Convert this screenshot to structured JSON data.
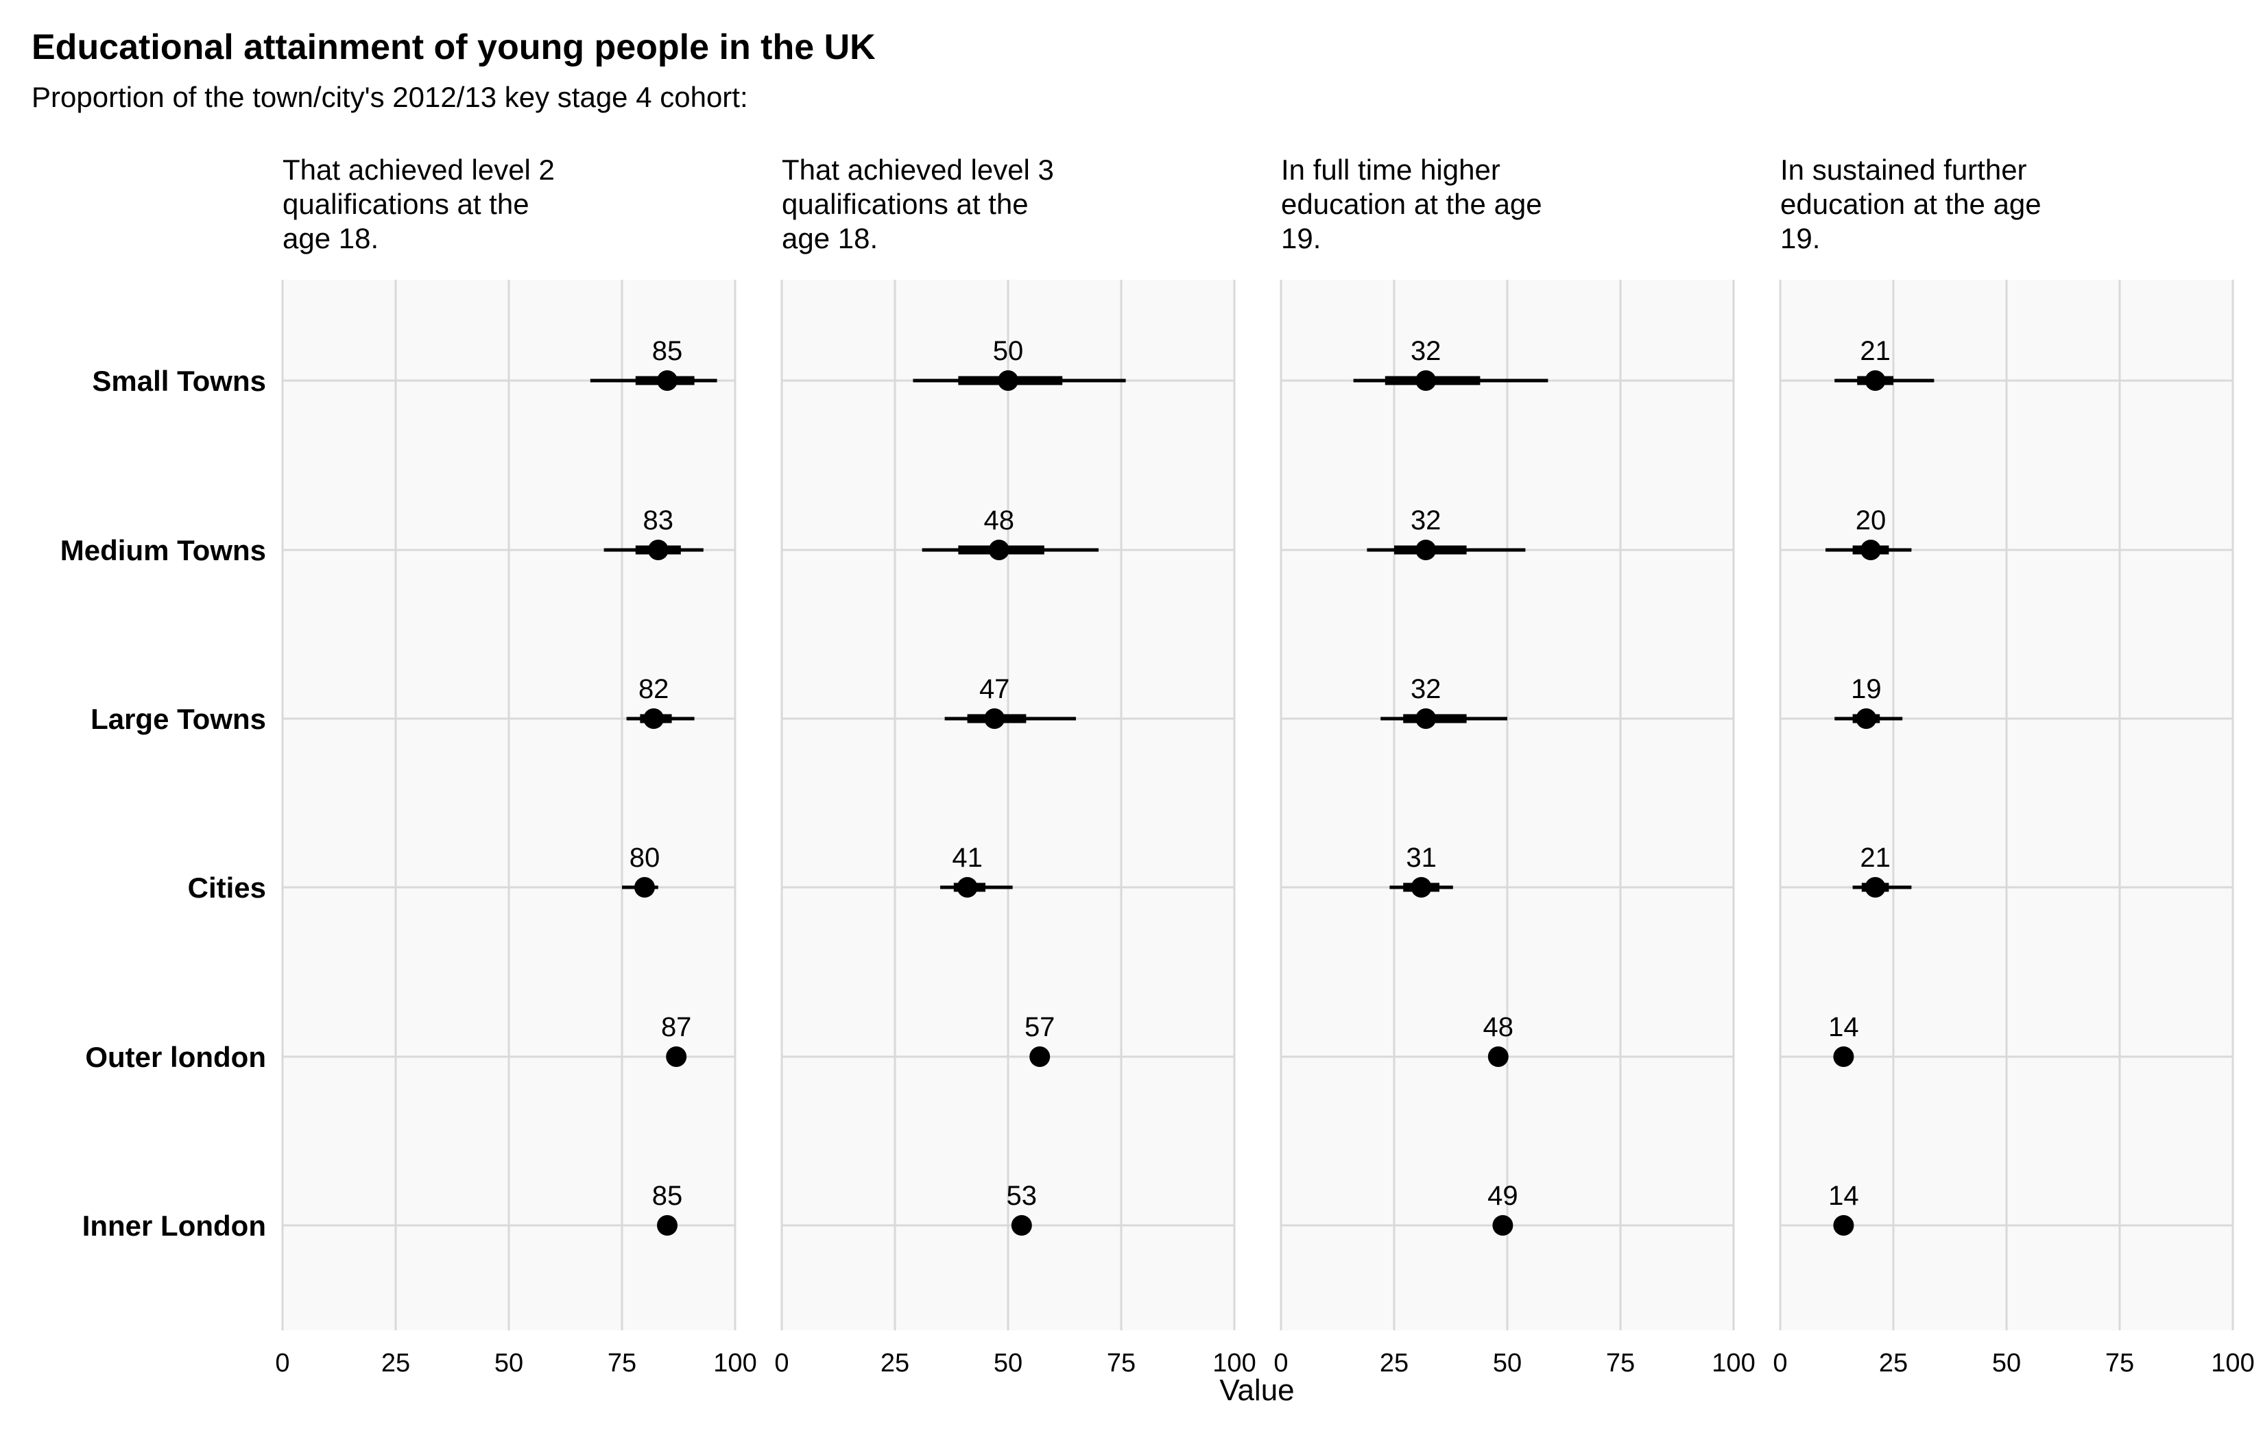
{
  "chart_data": {
    "type": "scatter",
    "title": "Educational attainment of young people in the UK",
    "subtitle": "Proportion of the town/city's 2012/13 key stage 4 cohort:",
    "xlabel": "Value",
    "ylabel": "",
    "xlim": [
      0,
      100
    ],
    "xticks": [
      "0",
      "25",
      "50",
      "75",
      "100"
    ],
    "grid": true,
    "categories": [
      "Small Towns",
      "Medium Towns",
      "Large Towns",
      "Cities",
      "Outer london",
      "Inner London"
    ],
    "facets": [
      {
        "title_lines": [
          "That achieved level 2",
          "qualifications at the",
          "age 18."
        ],
        "points": [
          {
            "category": "Small Towns",
            "value": 85,
            "label": "85",
            "range_inner": [
              78,
              91
            ],
            "range_outer": [
              68,
              96
            ]
          },
          {
            "category": "Medium Towns",
            "value": 83,
            "label": "83",
            "range_inner": [
              78,
              88
            ],
            "range_outer": [
              71,
              93
            ]
          },
          {
            "category": "Large Towns",
            "value": 82,
            "label": "82",
            "range_inner": [
              79,
              86
            ],
            "range_outer": [
              76,
              91
            ]
          },
          {
            "category": "Cities",
            "value": 80,
            "label": "80",
            "range_inner": [
              78,
              82
            ],
            "range_outer": [
              75,
              83
            ]
          },
          {
            "category": "Outer london",
            "value": 87,
            "label": "87"
          },
          {
            "category": "Inner London",
            "value": 85,
            "label": "85"
          }
        ]
      },
      {
        "title_lines": [
          "That achieved level 3",
          "qualifications at the",
          "age 18."
        ],
        "points": [
          {
            "category": "Small Towns",
            "value": 50,
            "label": "50",
            "range_inner": [
              39,
              62
            ],
            "range_outer": [
              29,
              76
            ]
          },
          {
            "category": "Medium Towns",
            "value": 48,
            "label": "48",
            "range_inner": [
              39,
              58
            ],
            "range_outer": [
              31,
              70
            ]
          },
          {
            "category": "Large Towns",
            "value": 47,
            "label": "47",
            "range_inner": [
              41,
              54
            ],
            "range_outer": [
              36,
              65
            ]
          },
          {
            "category": "Cities",
            "value": 41,
            "label": "41",
            "range_inner": [
              38,
              45
            ],
            "range_outer": [
              35,
              51
            ]
          },
          {
            "category": "Outer london",
            "value": 57,
            "label": "57"
          },
          {
            "category": "Inner London",
            "value": 53,
            "label": "53"
          }
        ]
      },
      {
        "title_lines": [
          "In full time higher",
          "education at the age",
          "19."
        ],
        "points": [
          {
            "category": "Small Towns",
            "value": 32,
            "label": "32",
            "range_inner": [
              23,
              44
            ],
            "range_outer": [
              16,
              59
            ]
          },
          {
            "category": "Medium Towns",
            "value": 32,
            "label": "32",
            "range_inner": [
              25,
              41
            ],
            "range_outer": [
              19,
              54
            ]
          },
          {
            "category": "Large Towns",
            "value": 32,
            "label": "32",
            "range_inner": [
              27,
              41
            ],
            "range_outer": [
              22,
              50
            ]
          },
          {
            "category": "Cities",
            "value": 31,
            "label": "31",
            "range_inner": [
              27,
              35
            ],
            "range_outer": [
              24,
              38
            ]
          },
          {
            "category": "Outer london",
            "value": 48,
            "label": "48"
          },
          {
            "category": "Inner London",
            "value": 49,
            "label": "49"
          }
        ]
      },
      {
        "title_lines": [
          "In sustained further",
          "education at the age",
          "19."
        ],
        "points": [
          {
            "category": "Small Towns",
            "value": 21,
            "label": "21",
            "range_inner": [
              17,
              25
            ],
            "range_outer": [
              12,
              34
            ]
          },
          {
            "category": "Medium Towns",
            "value": 20,
            "label": "20",
            "range_inner": [
              16,
              24
            ],
            "range_outer": [
              10,
              29
            ]
          },
          {
            "category": "Large Towns",
            "value": 19,
            "label": "19",
            "range_inner": [
              16,
              22
            ],
            "range_outer": [
              12,
              27
            ]
          },
          {
            "category": "Cities",
            "value": 21,
            "label": "21",
            "range_inner": [
              18,
              24
            ],
            "range_outer": [
              16,
              29
            ]
          },
          {
            "category": "Outer london",
            "value": 14,
            "label": "14"
          },
          {
            "category": "Inner London",
            "value": 14,
            "label": "14"
          }
        ]
      }
    ]
  }
}
